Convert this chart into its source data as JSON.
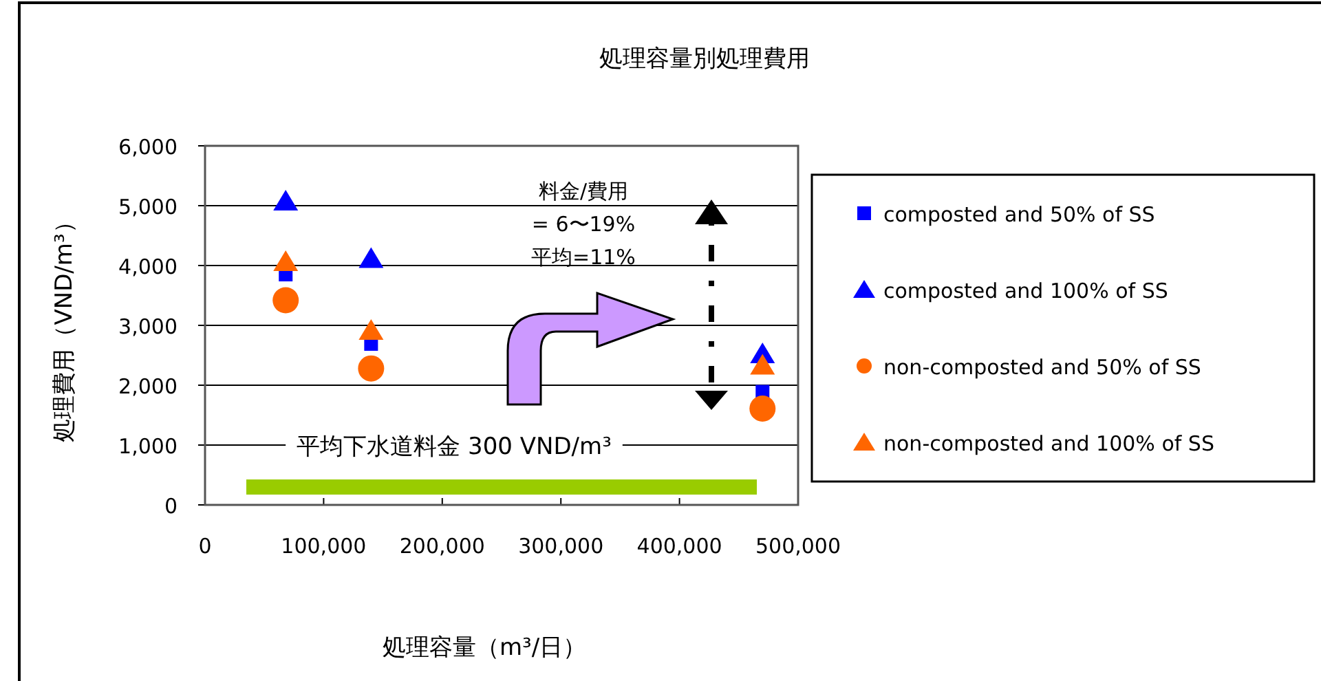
{
  "chart_data": {
    "type": "scatter",
    "title": "処理容量別処理費用",
    "xlabel": "処理容量（m³/日）",
    "ylabel": "処理費用（VND/m³）",
    "xlim": [
      0,
      500000
    ],
    "xticks": [
      0,
      {
        "value": 100000,
        "label": "100,000"
      },
      {
        "value": 200000,
        "label": "200,000"
      },
      {
        "value": 300000,
        "label": "300,000"
      },
      {
        "value": 400000,
        "label": "400,000"
      },
      {
        "value": 500000,
        "label": "500,000"
      }
    ],
    "ylim": [
      0,
      6000
    ],
    "yticks": [
      0,
      {
        "value": 1000,
        "label": "1,000"
      },
      {
        "value": 2000,
        "label": "2,000"
      },
      {
        "value": 3000,
        "label": "3,000"
      },
      {
        "value": 4000,
        "label": "4,000"
      },
      {
        "value": 5000,
        "label": "5,000"
      },
      {
        "value": 6000,
        "label": "6,000"
      }
    ],
    "grid": "y",
    "legend": "right",
    "series": [
      {
        "name": "composted and 50% of SS",
        "color": "#0000ff",
        "marker": "square",
        "x": [
          68000,
          140000,
          470000
        ],
        "values": [
          3850,
          2690,
          1890
        ]
      },
      {
        "name": "composted and 100% of SS",
        "color": "#0000ff",
        "marker": "triangle",
        "x": [
          68000,
          140000,
          470000
        ],
        "values": [
          5080,
          4120,
          2530
        ]
      },
      {
        "name": "non-composted and 50% of SS",
        "color": "#ff6600",
        "marker": "circle",
        "x": [
          68000,
          140000,
          470000
        ],
        "values": [
          3420,
          2280,
          1610
        ]
      },
      {
        "name": "non-composted and 100% of SS",
        "color": "#ff6600",
        "marker": "triangle",
        "x": [
          68000,
          140000,
          470000
        ],
        "values": [
          4070,
          2920,
          2340
        ]
      }
    ],
    "ref_lines": [
      {
        "axis": "y",
        "value": 300,
        "label": "平均下水道料金 300 VND/m³",
        "color": "#99cc00"
      }
    ],
    "annotations": [
      "料金/費用\n= 6〜19%\n平均=11%"
    ]
  }
}
